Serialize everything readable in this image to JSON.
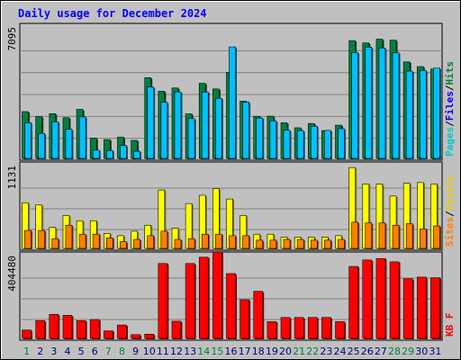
{
  "chart_data": {
    "type": "bar",
    "title": "Daily usage for December 2024",
    "categories": [
      "1",
      "2",
      "3",
      "4",
      "5",
      "6",
      "7",
      "8",
      "9",
      "10",
      "11",
      "12",
      "13",
      "14",
      "15",
      "16",
      "17",
      "18",
      "19",
      "20",
      "21",
      "22",
      "23",
      "24",
      "25",
      "26",
      "27",
      "28",
      "29",
      "30",
      "31"
    ],
    "weekend_days": [
      "1",
      "7",
      "8",
      "14",
      "15",
      "21",
      "22",
      "28",
      "29"
    ],
    "panels": [
      {
        "id": "hits-files-pages",
        "ymax_label": "7095",
        "ymax": 7095,
        "legend": [
          "Pages",
          "/",
          "Files",
          "/",
          "Hits"
        ],
        "series": [
          {
            "name": "Hits",
            "color": "#008040",
            "values": [
              2490,
              2220,
              2380,
              2170,
              2610,
              1080,
              1000,
              1130,
              960,
              4300,
              3580,
              3750,
              2370,
              4000,
              3700,
              4580,
              3050,
              2240,
              2250,
              1900,
              1630,
              1860,
              1480,
              1770,
              6270,
              6150,
              6350,
              6300,
              5140,
              4890,
              4760
            ]
          },
          {
            "name": "Files",
            "color": "#00c0ff",
            "values": [
              1900,
              1330,
              1950,
              1550,
              2210,
              440,
              420,
              690,
              380,
              3800,
              2990,
              3540,
              2120,
              3540,
              3200,
              5940,
              3000,
              2150,
              2000,
              1500,
              1480,
              1710,
              1490,
              1580,
              5640,
              5930,
              5880,
              5630,
              4650,
              4680,
              4810
            ]
          },
          {
            "name": "Pages",
            "color": "#00ffff",
            "values": [
              0,
              0,
              0,
              0,
              0,
              0,
              0,
              0,
              0,
              0,
              0,
              0,
              0,
              0,
              0,
              0,
              0,
              0,
              0,
              0,
              0,
              0,
              0,
              0,
              0,
              0,
              0,
              0,
              0,
              0,
              0
            ]
          }
        ]
      },
      {
        "id": "visits-sites",
        "ymax_label": "1131",
        "ymax": 1131,
        "legend": [
          "Sites",
          "/",
          "Visits"
        ],
        "series": [
          {
            "name": "Visits",
            "color": "#ffff00",
            "values": [
              610,
              580,
              280,
              440,
              370,
              370,
              200,
              170,
              230,
              310,
              780,
              270,
              600,
              710,
              800,
              660,
              440,
              190,
              190,
              150,
              150,
              150,
              150,
              170,
              1080,
              860,
              860,
              700,
              870,
              880,
              860
            ]
          },
          {
            "name": "Sites",
            "color": "#ff8000",
            "values": [
              240,
              240,
              130,
              310,
              190,
              190,
              140,
              90,
              120,
              170,
              230,
              120,
              130,
              190,
              190,
              170,
              170,
              110,
              110,
              120,
              120,
              110,
              110,
              120,
              350,
              340,
              340,
              310,
              330,
              260,
              300
            ]
          }
        ]
      },
      {
        "id": "kbytes",
        "ymax_label": "404480",
        "ymax": 404480,
        "legend": [
          "K",
          "B",
          " ",
          "F"
        ],
        "series": [
          {
            "name": "KBytes",
            "color": "#ff0000",
            "values": [
              40000,
              85000,
              115000,
              110000,
              85000,
              90000,
              36000,
              64000,
              18000,
              20000,
              358000,
              82000,
              358000,
              388000,
              413000,
              310000,
              185000,
              225000,
              80000,
              100000,
              100000,
              100000,
              100000,
              80000,
              344000,
              375000,
              382000,
              366000,
              285000,
              293000,
              290000
            ]
          }
        ]
      }
    ]
  }
}
